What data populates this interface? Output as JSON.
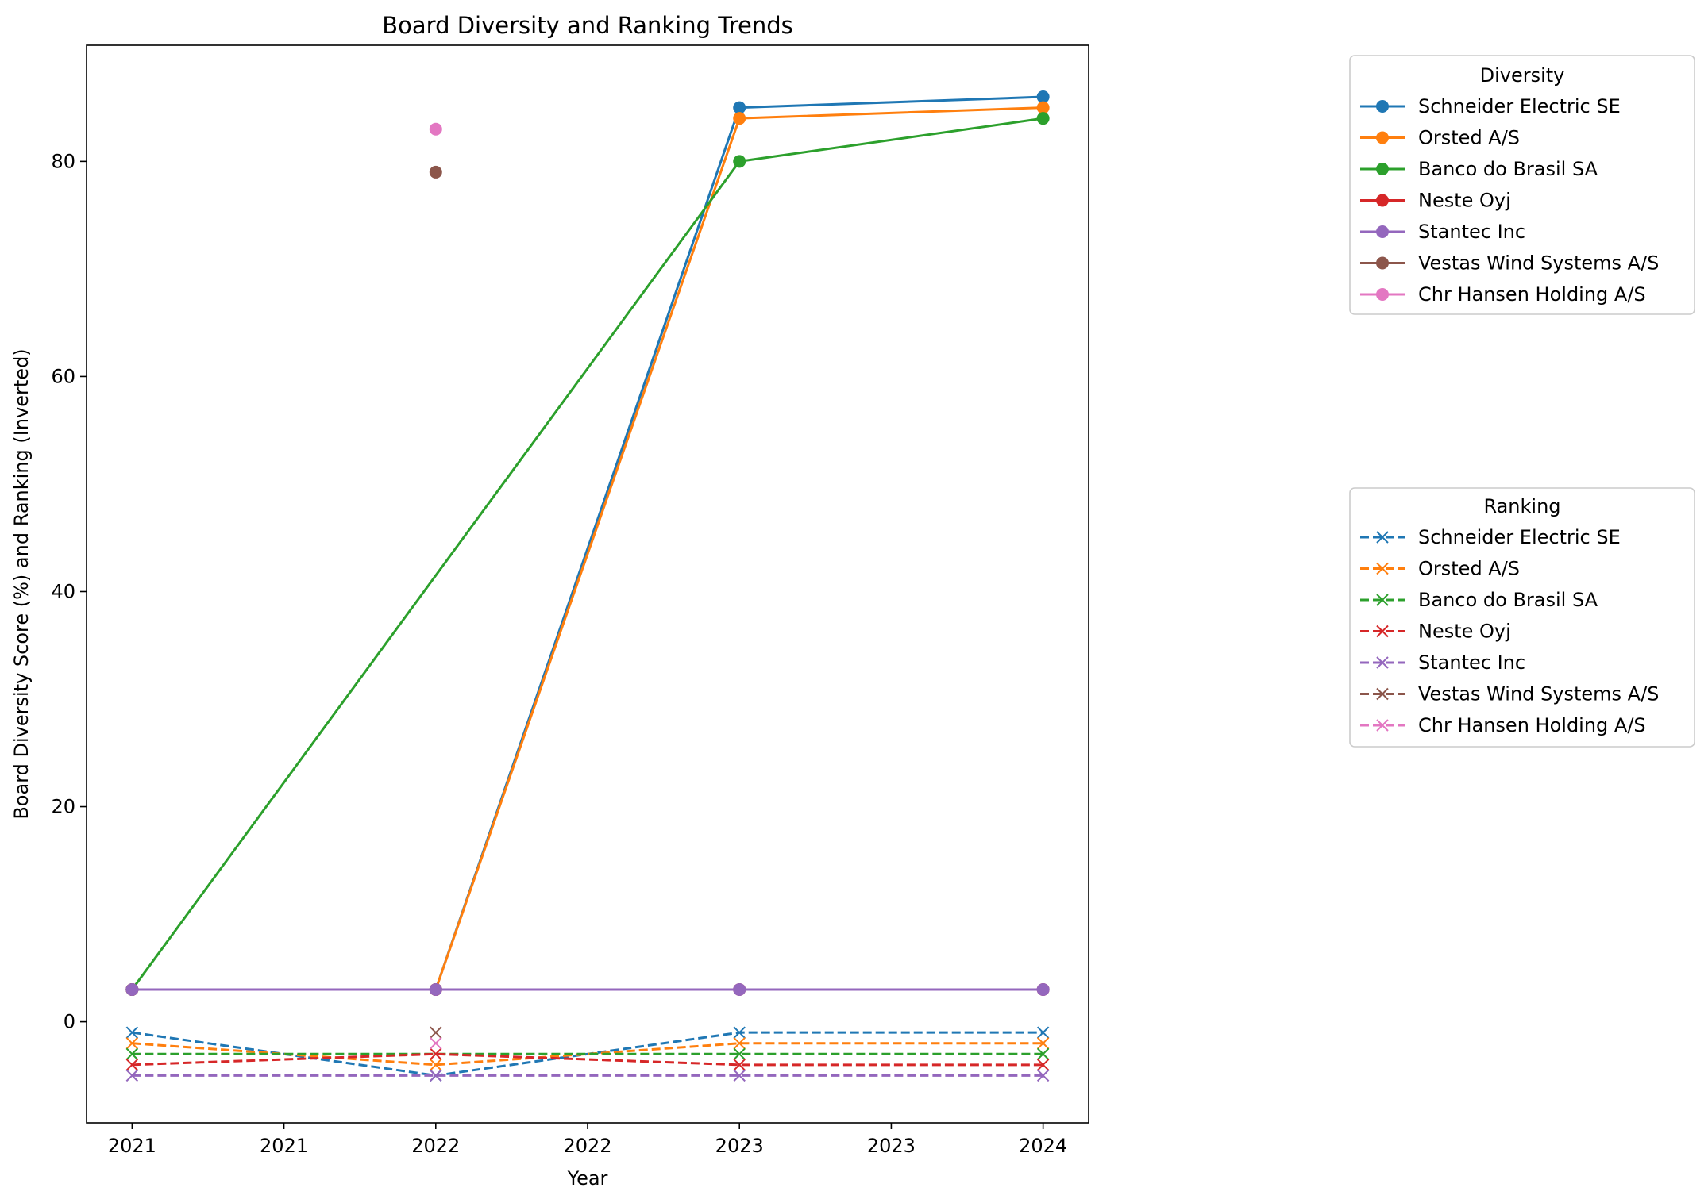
{
  "chart_data": {
    "type": "line",
    "title": "Board Diversity and Ranking Trends",
    "xlabel": "Year",
    "ylabel": "Board Diversity Score (%) and Ranking (Inverted)",
    "xlim": [
      2020.85,
      2024.15
    ],
    "ylim": [
      -9.4,
      90.8
    ],
    "x_ticks": [
      2021.0,
      2021.5,
      2022.0,
      2022.5,
      2023.0,
      2023.5,
      2024.0
    ],
    "x_tick_labels": [
      "2021",
      "2021",
      "2022",
      "2022",
      "2023",
      "2023",
      "2024"
    ],
    "y_ticks": [
      0,
      20,
      40,
      60,
      80
    ],
    "y_tick_labels": [
      "0",
      "20",
      "40",
      "60",
      "80"
    ],
    "grid": false,
    "colors": [
      "#1f77b4",
      "#ff7f0e",
      "#2ca02c",
      "#d62728",
      "#9467bd",
      "#8c564b",
      "#e377c2"
    ],
    "companies": [
      "Schneider Electric SE",
      "Orsted A/S",
      "Banco do Brasil SA",
      "Neste Oyj",
      "Stantec Inc",
      "Vestas Wind Systems A/S",
      "Chr Hansen Holding A/S"
    ],
    "diversity_legend_title": "Diversity",
    "ranking_legend_title": "Ranking",
    "legend_placement": "outside-right",
    "diversity_series": [
      {
        "name": "Schneider Electric SE",
        "x": [
          2021,
          2022,
          2023,
          2024
        ],
        "y": [
          3,
          3,
          85,
          86
        ]
      },
      {
        "name": "Orsted A/S",
        "x": [
          2021,
          2022,
          2023,
          2024
        ],
        "y": [
          3,
          3,
          84,
          85
        ]
      },
      {
        "name": "Banco do Brasil SA",
        "x": [
          2021,
          2023,
          2024
        ],
        "y": [
          3,
          80,
          84
        ]
      },
      {
        "name": "Neste Oyj",
        "x": [
          2021,
          2022,
          2023,
          2024
        ],
        "y": [
          3,
          3,
          3,
          3
        ]
      },
      {
        "name": "Stantec Inc",
        "x": [
          2021,
          2022,
          2023,
          2024
        ],
        "y": [
          3,
          3,
          3,
          3
        ]
      },
      {
        "name": "Vestas Wind Systems A/S",
        "x": [
          2022
        ],
        "y": [
          79
        ]
      },
      {
        "name": "Chr Hansen Holding A/S",
        "x": [
          2022
        ],
        "y": [
          83
        ]
      }
    ],
    "ranking_series": [
      {
        "name": "Schneider Electric SE",
        "x": [
          2021,
          2022,
          2023,
          2024
        ],
        "y": [
          -1,
          -5,
          -1,
          -1
        ]
      },
      {
        "name": "Orsted A/S",
        "x": [
          2021,
          2022,
          2023,
          2024
        ],
        "y": [
          -2,
          -4,
          -2,
          -2
        ]
      },
      {
        "name": "Banco do Brasil SA",
        "x": [
          2021,
          2023,
          2024
        ],
        "y": [
          -3,
          -3,
          -3
        ]
      },
      {
        "name": "Neste Oyj",
        "x": [
          2021,
          2022,
          2023,
          2024
        ],
        "y": [
          -4,
          -3,
          -4,
          -4
        ]
      },
      {
        "name": "Stantec Inc",
        "x": [
          2021,
          2022,
          2023,
          2024
        ],
        "y": [
          -5,
          -5,
          -5,
          -5
        ]
      },
      {
        "name": "Vestas Wind Systems A/S",
        "x": [
          2022
        ],
        "y": [
          -1
        ]
      },
      {
        "name": "Chr Hansen Holding A/S",
        "x": [
          2022
        ],
        "y": [
          -2
        ]
      }
    ]
  }
}
